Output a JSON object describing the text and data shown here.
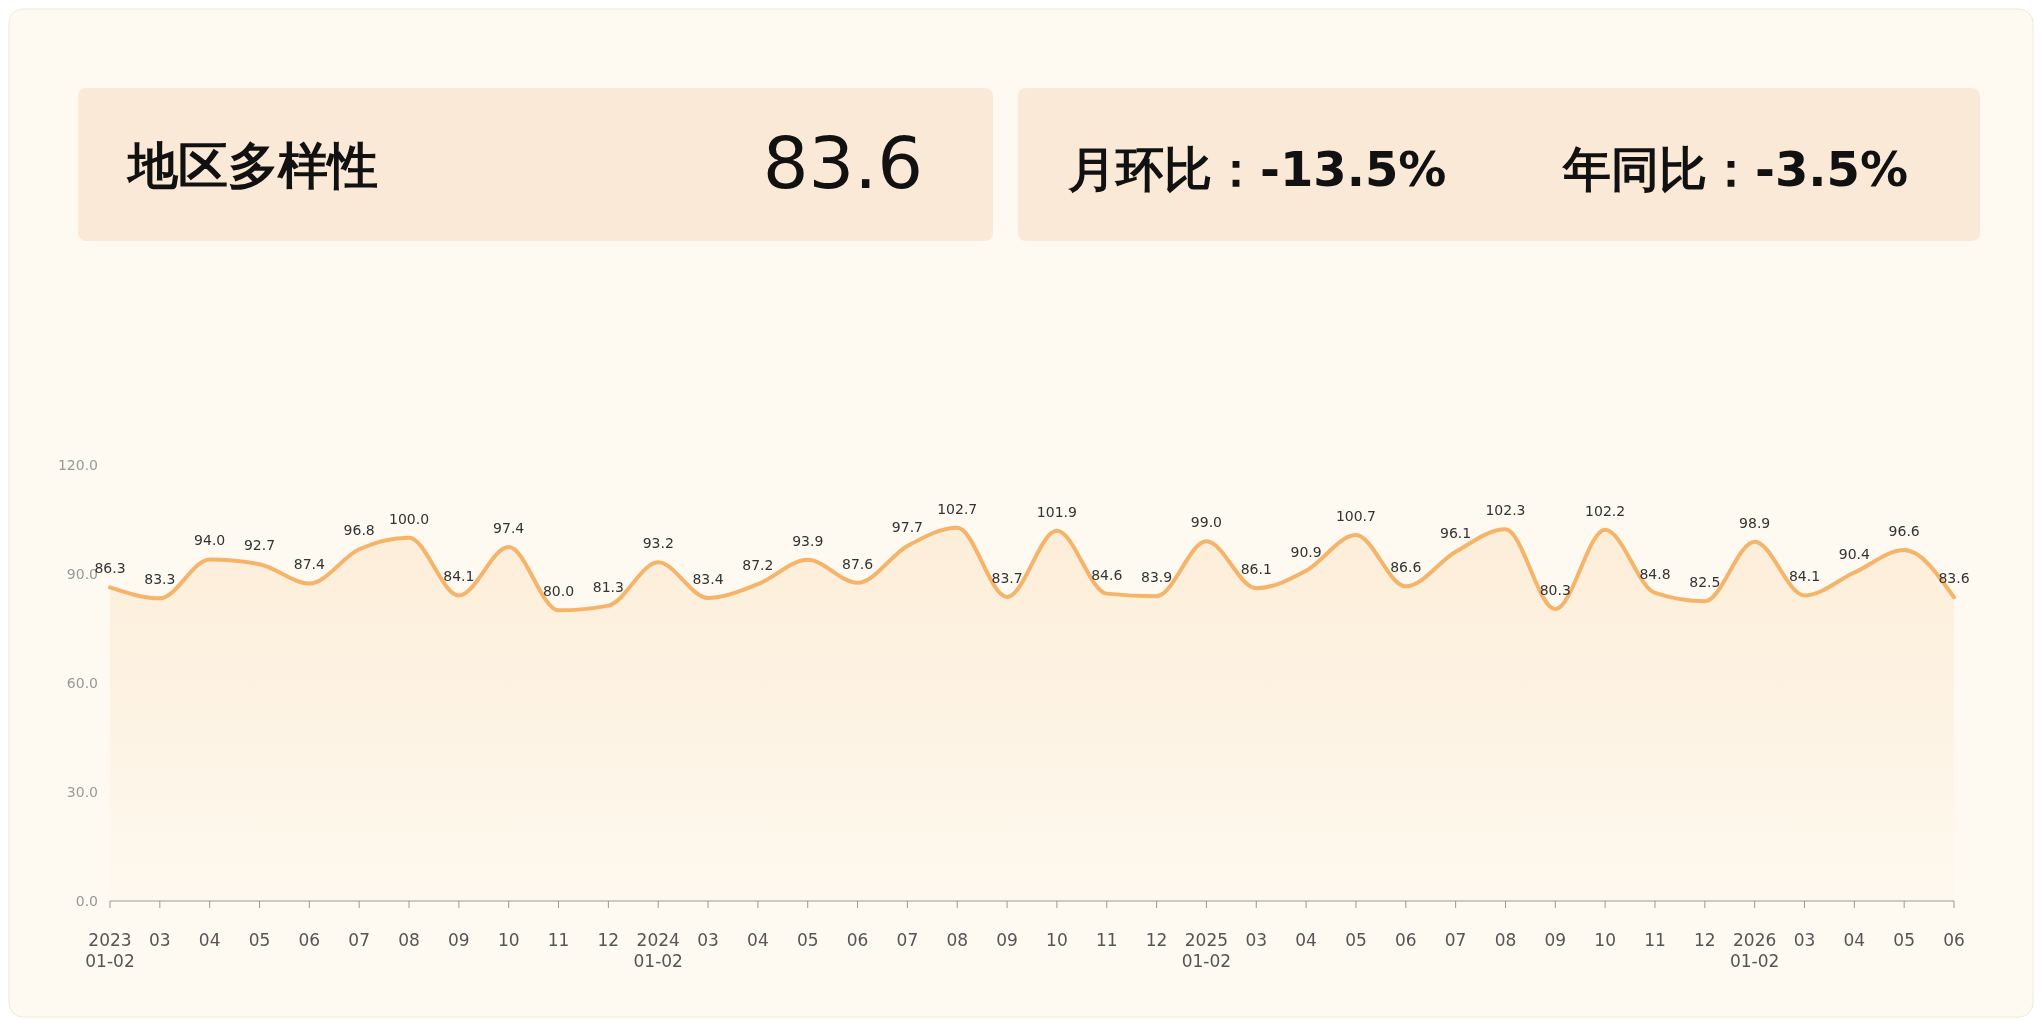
{
  "chart_data": {
    "type": "area",
    "title": "地区多样性",
    "annotations": [
      "83.6",
      "月环比：-13.5%",
      "年同比：-3.5%"
    ],
    "categories": [
      "2023\n01-02",
      "03",
      "04",
      "05",
      "06",
      "07",
      "08",
      "09",
      "10",
      "11",
      "12",
      "2024\n01-02",
      "03",
      "04",
      "05",
      "06",
      "07",
      "08",
      "09",
      "10",
      "11",
      "12",
      "2025\n01-02",
      "03",
      "04",
      "05",
      "06",
      "07",
      "08",
      "09",
      "10",
      "11",
      "12",
      "2026\n01-02",
      "03",
      "04",
      "05",
      "06"
    ],
    "series": [
      {
        "color": "#f5b46a",
        "values": [
          86.3,
          83.3,
          94.0,
          92.7,
          87.4,
          96.8,
          100.0,
          84.1,
          97.4,
          80.0,
          81.3,
          93.2,
          83.4,
          87.2,
          93.9,
          87.6,
          97.7,
          102.7,
          83.7,
          101.9,
          84.6,
          83.9,
          99.0,
          86.1,
          90.9,
          100.7,
          86.6,
          96.1,
          102.3,
          80.3,
          102.2,
          84.8,
          82.5,
          98.9,
          84.1,
          90.4,
          96.6,
          83.6
        ],
        "value_labels": [
          "86.3",
          "83.3",
          "94.0",
          "92.7",
          "87.4",
          "96.8",
          "100.0",
          "84.1",
          "97.4",
          "80.0",
          "81.3",
          "93.2",
          "83.4",
          "87.2",
          "93.9",
          "87.6",
          "97.7",
          "102.7",
          "83.7",
          "101.9",
          "84.6",
          "83.9",
          "99.0",
          "86.1",
          "90.9",
          "100.7",
          "86.6",
          "96.1",
          "102.3",
          "80.3",
          "102.2",
          "84.8",
          "82.5",
          "98.9",
          "84.1",
          "90.4",
          "96.6",
          "83.6"
        ]
      }
    ],
    "ylim": [
      0,
      120
    ],
    "yticks": [
      {
        "value": 0,
        "label": "0.0"
      },
      {
        "value": 30,
        "label": "30.0"
      },
      {
        "value": 60,
        "label": "60.0"
      },
      {
        "value": 90,
        "label": "90.0"
      },
      {
        "value": 120,
        "label": "120.0"
      }
    ],
    "grid": false,
    "marker": "none",
    "line_style": "solid"
  }
}
